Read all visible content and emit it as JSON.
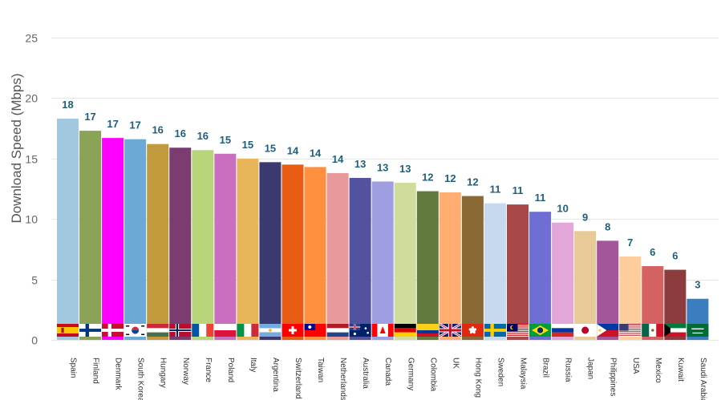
{
  "chart_data": {
    "type": "bar",
    "title": "",
    "xlabel": "",
    "ylabel": "Download Speed (Mbps)",
    "ylim": [
      0,
      25
    ],
    "yticks": [
      0,
      5,
      10,
      15,
      20,
      25
    ],
    "grid": true,
    "legend": "none",
    "categories": [
      "Spain",
      "Finland",
      "Denmark",
      "South Korea",
      "Hungary",
      "Norway",
      "France",
      "Poland",
      "Italy",
      "Argentina",
      "Switzerland",
      "Taiwan",
      "Netherlands",
      "Australia",
      "Canada",
      "Germany",
      "Colombia",
      "UK",
      "Hong Kong",
      "Sweden",
      "Malaysia",
      "Brazil",
      "Russia",
      "Japan",
      "Philippines",
      "USA",
      "Mexico",
      "Kuwait",
      "Saudi Arabia"
    ],
    "values": [
      18.3,
      17.3,
      16.7,
      16.6,
      16.2,
      15.9,
      15.7,
      15.4,
      15.0,
      14.7,
      14.5,
      14.3,
      13.8,
      13.4,
      13.1,
      13.0,
      12.3,
      12.2,
      11.9,
      11.3,
      11.2,
      10.6,
      9.7,
      9.0,
      8.2,
      6.9,
      6.1,
      5.8,
      3.4
    ],
    "data_labels": [
      "18",
      "17",
      "17",
      "17",
      "16",
      "16",
      "16",
      "15",
      "15",
      "15",
      "14",
      "14",
      "14",
      "13",
      "13",
      "13",
      "12",
      "12",
      "12",
      "11",
      "11",
      "11",
      "10",
      "9",
      "8",
      "7",
      "6",
      "6",
      "3"
    ],
    "colors": [
      "#a2c8e0",
      "#8ba356",
      "#ff00ff",
      "#6aaad4",
      "#c09a3c",
      "#7b3d6f",
      "#b9d57a",
      "#c96fc0",
      "#e8b65a",
      "#3b3a70",
      "#e85c15",
      "#ff9040",
      "#e79a9a",
      "#52529e",
      "#9e9ee0",
      "#cfdc9c",
      "#627a3e",
      "#ffad72",
      "#8a6a34",
      "#c6d9ee",
      "#a84848",
      "#6e6ed4",
      "#e3a6d8",
      "#e8c998",
      "#a4569a",
      "#fecd9c",
      "#d46262",
      "#8c3c3c",
      "#3a7ec0"
    ]
  }
}
